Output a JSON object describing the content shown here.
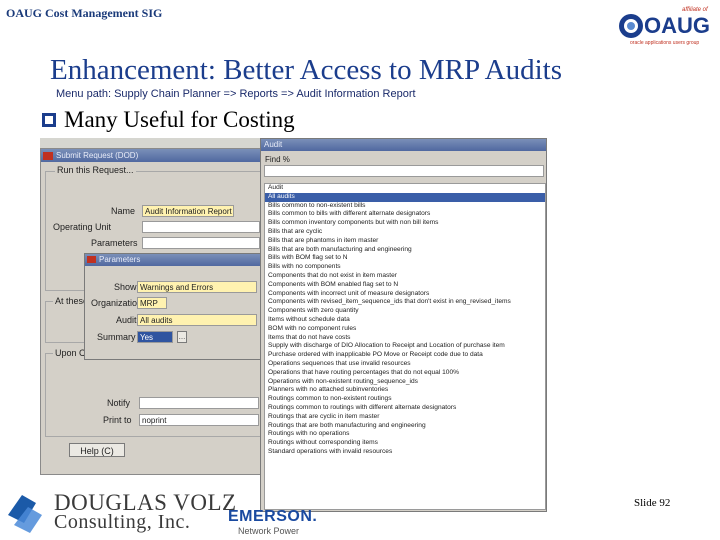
{
  "header": {
    "title": "OAUG Cost Management SIG",
    "logo": {
      "name": "oaug-logo",
      "text": "OAUG",
      "affiliate": "affiliate of",
      "tagline": "oracle applications users group"
    }
  },
  "slide": {
    "title": "Enhancement:  Better Access to MRP Audits",
    "menu_path": "Menu path:  Supply Chain Planner => Reports  => Audit Information Report",
    "bullet": "Many Useful for Costing"
  },
  "request_window": {
    "title": "Submit Request (DOD)",
    "run_section": "Run this Request...",
    "name_label": "Name",
    "name_value": "Audit Information Report",
    "operating_unit_label": "Operating Unit",
    "parameters_label": "Parameters",
    "at_these_label": "At these",
    "upon_label": "Upon C",
    "notify_label": "Notify",
    "print_to_label": "Print to",
    "print_to_value": "noprint",
    "help_button": "Help (C)"
  },
  "params_dialog": {
    "title": "Parameters",
    "show_label": "Show",
    "show_value": "Warnings and Errors",
    "org_label": "Organization",
    "org_value": "MRP",
    "audit_label": "Audit",
    "audit_value": "All audits",
    "summary_label": "Summary",
    "summary_value": "Yes"
  },
  "audit_window": {
    "title": "Audit",
    "find_label": "Find %",
    "column_header": "Audit",
    "items": [
      "All audits",
      "Bills common to non-existent bills",
      "Bills common to bills with different alternate designators",
      "Bills common inventory components but with non bill items",
      "Bills that are cyclic",
      "Bills that are phantoms in item master",
      "Bills that are both manufacturing and engineering",
      "Bills with BOM flag set to N",
      "Bills with no components",
      "Components that do not exist in item master",
      "Components with BOM enabled flag set to N",
      "Components with incorrect unit of measure designators",
      "Components with revised_item_sequence_ids that don't exist in eng_revised_items",
      "Components with zero quantity",
      "Items without schedule data",
      "BOM with no component rules",
      "Items that do not have costs",
      "Supply with discharge of DIO Allocation to Receipt and Location of purchase item",
      "Purchase ordered with inapplicable PO Move or Receipt code due to data",
      "Operations sequences that use invalid resources",
      "Operations that have routing percentages that do not equal 100%",
      "Operations with non-existent routing_sequence_ids",
      "Planners with no attached subinventories",
      "Routings common to non-existent routings",
      "Routings common to routings with different alternate designators",
      "Routings that are cyclic in item master",
      "Routings that are both manufacturing and engineering",
      "Routings with no operations",
      "Routings without corresponding items",
      "Standard operations with invalid resources"
    ],
    "selected_index": 0
  },
  "footer": {
    "company_line1": "DOUGLAS VOLZ",
    "company_line2": "Consulting, Inc.",
    "emerson": "EMERSON.",
    "emerson_sub": "Network Power",
    "slide_number": "Slide 92"
  },
  "colors": {
    "title_blue": "#1b3d8c",
    "titlebar": "#5068a0",
    "selection": "#3a5ea8",
    "field_yellow": "#fff2b0"
  }
}
